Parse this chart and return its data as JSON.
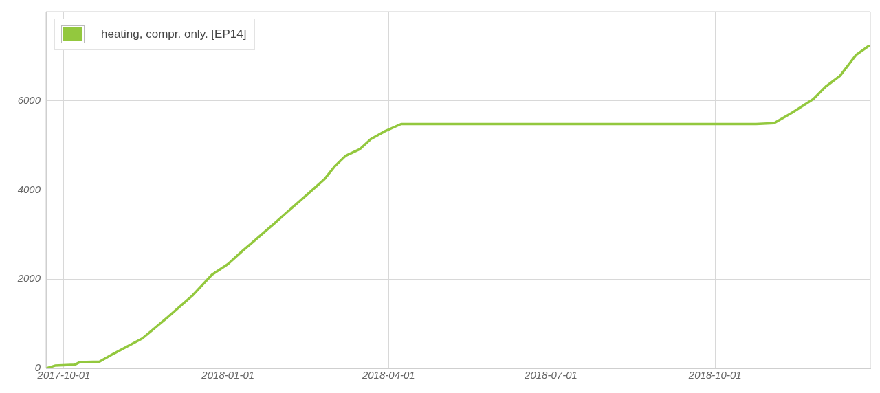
{
  "chart_data": {
    "type": "line",
    "x": [
      "2017-09-21",
      "2017-09-26",
      "2017-10-07",
      "2017-10-10",
      "2017-10-21",
      "2017-10-29",
      "2017-11-14",
      "2017-11-28",
      "2017-12-12",
      "2017-12-23",
      "2018-01-01",
      "2018-01-09",
      "2018-01-16",
      "2018-01-27",
      "2018-02-03",
      "2018-02-15",
      "2018-02-24",
      "2018-03-02",
      "2018-03-08",
      "2018-03-16",
      "2018-03-22",
      "2018-03-30",
      "2018-04-08",
      "2018-10-24",
      "2018-11-03",
      "2018-11-13",
      "2018-11-25",
      "2018-12-02",
      "2018-12-10",
      "2018-12-19",
      "2018-12-26"
    ],
    "series": [
      {
        "name": "heating, compr. only. [EP14]",
        "color": "#93c83e",
        "values": [
          0,
          60,
          80,
          140,
          150,
          330,
          670,
          1140,
          1630,
          2100,
          2340,
          2630,
          2870,
          3250,
          3500,
          3920,
          4240,
          4540,
          4770,
          4920,
          5140,
          5320,
          5480,
          5480,
          5500,
          5730,
          6040,
          6320,
          6560,
          7030,
          7230
        ]
      }
    ],
    "xlim": [
      "2017-09-21",
      "2018-12-27"
    ],
    "xticks": [
      "2017-10-01",
      "2018-01-01",
      "2018-04-01",
      "2018-07-01",
      "2018-10-01"
    ],
    "ylim": [
      0,
      8000
    ],
    "yticks": [
      0,
      2000,
      4000,
      6000
    ],
    "grid": true,
    "legend": "top left",
    "marker": "none",
    "line_style": "solid"
  }
}
